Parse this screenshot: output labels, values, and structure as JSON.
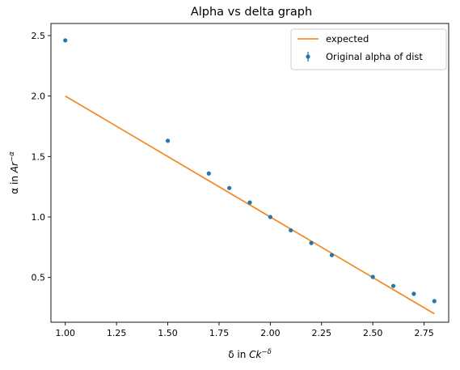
{
  "chart_data": {
    "type": "scatter",
    "title": "Alpha vs delta graph",
    "xlabel": {
      "prefix": "δ in ",
      "var": "Ck",
      "sup": "−δ"
    },
    "ylabel": {
      "prefix": "α in ",
      "var": "Ar",
      "sup": "−α"
    },
    "xlim": [
      0.93,
      2.87
    ],
    "ylim": [
      0.13,
      2.6
    ],
    "xticks": [
      "1.00",
      "1.25",
      "1.50",
      "1.75",
      "2.00",
      "2.25",
      "2.50",
      "2.75"
    ],
    "yticks": [
      "0.5",
      "1.0",
      "1.5",
      "2.0",
      "2.5"
    ],
    "grid": false,
    "legend_position": "top-right",
    "series": [
      {
        "name": "expected",
        "kind": "line",
        "color": "#ff7f0e",
        "x": [
          1.0,
          2.8
        ],
        "y": [
          2.0,
          0.2
        ]
      },
      {
        "name": "Original alpha of dist",
        "kind": "errorbar-points",
        "color": "#1f77b4",
        "x": [
          1.0,
          1.5,
          1.7,
          1.8,
          1.9,
          2.0,
          2.1,
          2.2,
          2.3,
          2.5,
          2.6,
          2.7,
          2.8
        ],
        "y": [
          2.46,
          1.63,
          1.36,
          1.24,
          1.12,
          1.0,
          0.89,
          0.785,
          0.685,
          0.505,
          0.43,
          0.365,
          0.305
        ]
      }
    ]
  }
}
